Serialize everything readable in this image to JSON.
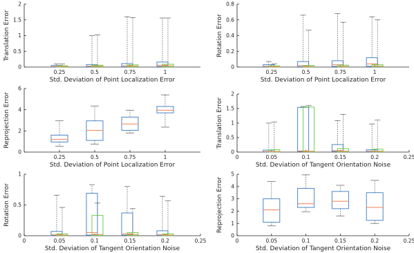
{
  "colors": {
    "blue": "#4a86c8",
    "green": "#6ccf4c",
    "median": "#f08050",
    "axis": "#222222"
  },
  "chart_data": [
    {
      "type": "box",
      "xlabel": "Std. Deviation of Point Localization Error",
      "ylabel": "Translation Error",
      "x_axis": "categorical",
      "categories": [
        "0.25",
        "0.5",
        "0.75",
        "1"
      ],
      "ylim": [
        0,
        2
      ],
      "yticks": [
        "0",
        "0.5",
        "1",
        "1.5",
        "2"
      ],
      "groups": [
        [
          {
            "color": "blue",
            "min": 0,
            "q1": 0.005,
            "median": 0.02,
            "q3": 0.05,
            "max": 0.1
          },
          {
            "color": "green",
            "min": 0,
            "q1": 0.005,
            "median": 0.02,
            "q3": 0.04,
            "max": 0.1
          }
        ],
        [
          {
            "color": "blue",
            "min": 0,
            "q1": 0.01,
            "median": 0.03,
            "q3": 0.08,
            "max": 1.0
          },
          {
            "color": "green",
            "min": 0,
            "q1": 0.01,
            "median": 0.03,
            "q3": 0.06,
            "max": 1.02
          }
        ],
        [
          {
            "color": "blue",
            "min": 0,
            "q1": 0.01,
            "median": 0.04,
            "q3": 0.11,
            "max": 1.6
          },
          {
            "color": "green",
            "min": 0,
            "q1": 0.01,
            "median": 0.03,
            "q3": 0.07,
            "max": 1.57
          }
        ],
        [
          {
            "color": "blue",
            "min": 0,
            "q1": 0.02,
            "median": 0.06,
            "q3": 0.16,
            "max": 1.56
          },
          {
            "color": "green",
            "min": 0,
            "q1": 0.01,
            "median": 0.04,
            "q3": 0.09,
            "max": 1.56
          }
        ]
      ]
    },
    {
      "type": "box",
      "xlabel": "Std. Deviation of Point Localization Error",
      "ylabel": "Rotation Error",
      "x_axis": "categorical",
      "categories": [
        "0.25",
        "0.5",
        "0.75",
        "1"
      ],
      "ylim": [
        0,
        0.8
      ],
      "yticks": [
        "0",
        "0.2",
        "0.4",
        "0.6",
        "0.8"
      ],
      "groups": [
        [
          {
            "color": "blue",
            "min": 0,
            "q1": 0.003,
            "median": 0.01,
            "q3": 0.03,
            "max": 0.07
          },
          {
            "color": "green",
            "min": 0,
            "q1": 0.002,
            "median": 0.005,
            "q3": 0.015,
            "max": 0.04
          }
        ],
        [
          {
            "color": "blue",
            "min": 0,
            "q1": 0.005,
            "median": 0.02,
            "q3": 0.07,
            "max": 0.66
          },
          {
            "color": "green",
            "min": 0,
            "q1": 0.003,
            "median": 0.008,
            "q3": 0.02,
            "max": 0.47
          }
        ],
        [
          {
            "color": "blue",
            "min": 0,
            "q1": 0.008,
            "median": 0.03,
            "q3": 0.08,
            "max": 0.68
          },
          {
            "color": "green",
            "min": 0,
            "q1": 0.003,
            "median": 0.01,
            "q3": 0.025,
            "max": 0.57
          }
        ],
        [
          {
            "color": "blue",
            "min": 0,
            "q1": 0.01,
            "median": 0.04,
            "q3": 0.12,
            "max": 0.64
          },
          {
            "color": "green",
            "min": 0,
            "q1": 0.004,
            "median": 0.012,
            "q3": 0.03,
            "max": 0.6
          }
        ]
      ]
    },
    {
      "type": "box",
      "xlabel": "Std. Deviation of Point Localization Error",
      "ylabel": "Reprojection Error",
      "x_axis": "categorical",
      "categories": [
        "0.25",
        "0.5",
        "0.75",
        "1"
      ],
      "ylim": [
        0,
        6
      ],
      "yticks": [
        "0",
        "2",
        "4",
        "6"
      ],
      "groups": [
        [
          {
            "color": "blue",
            "min": 0.55,
            "q1": 0.95,
            "median": 1.2,
            "q3": 1.6,
            "max": 2.95
          }
        ],
        [
          {
            "color": "blue",
            "min": 0.75,
            "q1": 1.1,
            "median": 2.05,
            "q3": 2.95,
            "max": 4.35
          }
        ],
        [
          {
            "color": "blue",
            "min": 1.8,
            "q1": 2.05,
            "median": 2.65,
            "q3": 3.3,
            "max": 3.95
          }
        ],
        [
          {
            "color": "blue",
            "min": 2.35,
            "q1": 3.7,
            "median": 3.95,
            "q3": 4.3,
            "max": 5.4
          }
        ]
      ]
    },
    {
      "type": "box",
      "xlabel": "Std. Deviation of Tangent Orientation Noise",
      "ylabel": "Translation Error",
      "x_axis": "numeric",
      "xlim": [
        0,
        0.25
      ],
      "xticks": [
        "0",
        "0.05",
        "0.1",
        "0.15",
        "0.2",
        "0.25"
      ],
      "positions": [
        0.05,
        0.1,
        0.15,
        0.2
      ],
      "ylim": [
        0,
        2
      ],
      "yticks": [
        "0",
        "0.5",
        "1",
        "1.5",
        "2"
      ],
      "groups": [
        [
          {
            "color": "blue",
            "min": 0,
            "q1": 0.005,
            "median": 0.02,
            "q3": 0.07,
            "max": 1.0
          },
          {
            "color": "green",
            "min": 0,
            "q1": 0.005,
            "median": 0.02,
            "q3": 0.08,
            "max": 1.03
          }
        ],
        [
          {
            "color": "blue",
            "min": 0,
            "q1": 0.02,
            "median": 0.04,
            "q3": 1.54,
            "max": 1.57
          },
          {
            "color": "green",
            "min": 0,
            "q1": 0.01,
            "median": 0.03,
            "q3": 1.55,
            "max": 1.6
          }
        ],
        [
          {
            "color": "blue",
            "min": 0,
            "q1": 0.02,
            "median": 0.05,
            "q3": 0.26,
            "max": 1.08
          },
          {
            "color": "green",
            "min": 0,
            "q1": 0.01,
            "median": 0.03,
            "q3": 0.12,
            "max": 1.3
          }
        ],
        [
          {
            "color": "blue",
            "min": 0,
            "q1": 0.01,
            "median": 0.03,
            "q3": 0.08,
            "max": 0.97
          },
          {
            "color": "green",
            "min": 0,
            "q1": 0.01,
            "median": 0.03,
            "q3": 0.1,
            "max": 1.1
          }
        ]
      ]
    },
    {
      "type": "box",
      "xlabel": "Std. Deviation of Tangent Orientation Noise",
      "ylabel": "Rotation Error",
      "x_axis": "numeric",
      "xlim": [
        0,
        0.25
      ],
      "xticks": [
        "0",
        "0.05",
        "0.1",
        "0.15",
        "0.2",
        "0.25"
      ],
      "positions": [
        0.05,
        0.1,
        0.15,
        0.2
      ],
      "ylim": [
        0,
        1
      ],
      "yticks": [
        "0",
        "0.5",
        "1"
      ],
      "groups": [
        [
          {
            "color": "blue",
            "min": 0,
            "q1": 0.005,
            "median": 0.02,
            "q3": 0.07,
            "max": 0.66
          },
          {
            "color": "green",
            "min": 0,
            "q1": 0.003,
            "median": 0.01,
            "q3": 0.03,
            "max": 0.46
          }
        ],
        [
          {
            "color": "blue",
            "min": 0,
            "q1": 0.01,
            "median": 0.05,
            "q3": 0.69,
            "max": 0.83
          },
          {
            "color": "green",
            "min": 0,
            "q1": 0.005,
            "median": 0.02,
            "q3": 0.33,
            "max": 0.53
          }
        ],
        [
          {
            "color": "blue",
            "min": 0,
            "q1": 0.01,
            "median": 0.03,
            "q3": 0.37,
            "max": 0.8
          },
          {
            "color": "green",
            "min": 0,
            "q1": 0.005,
            "median": 0.02,
            "q3": 0.05,
            "max": 0.44
          }
        ],
        [
          {
            "color": "blue",
            "min": 0,
            "q1": 0.005,
            "median": 0.02,
            "q3": 0.08,
            "max": 0.64
          },
          {
            "color": "green",
            "min": 0,
            "q1": 0.003,
            "median": 0.01,
            "q3": 0.03,
            "max": 0.57
          }
        ]
      ]
    },
    {
      "type": "box",
      "xlabel": "Std. Deviation of Tangent Orientation Noise",
      "ylabel": "Reprojection Error",
      "x_axis": "numeric",
      "xlim": [
        0,
        0.25
      ],
      "xticks": [
        "0",
        "0.05",
        "0.1",
        "0.15",
        "0.2",
        "0.25"
      ],
      "positions": [
        0.05,
        0.1,
        0.15,
        0.2
      ],
      "ylim": [
        0,
        5
      ],
      "yticks": [
        "0",
        "1",
        "2",
        "3",
        "4",
        "5"
      ],
      "groups": [
        [
          {
            "color": "blue",
            "min": 0.8,
            "q1": 1.1,
            "median": 2.1,
            "q3": 3.0,
            "max": 4.4
          }
        ],
        [
          {
            "color": "blue",
            "min": 1.95,
            "q1": 2.3,
            "median": 2.6,
            "q3": 3.85,
            "max": 4.95
          }
        ],
        [
          {
            "color": "blue",
            "min": 1.6,
            "q1": 2.2,
            "median": 2.8,
            "q3": 3.6,
            "max": 4.1
          }
        ],
        [
          {
            "color": "blue",
            "min": 1.0,
            "q1": 1.25,
            "median": 2.3,
            "q3": 3.5,
            "max": 4.5
          }
        ]
      ]
    }
  ]
}
